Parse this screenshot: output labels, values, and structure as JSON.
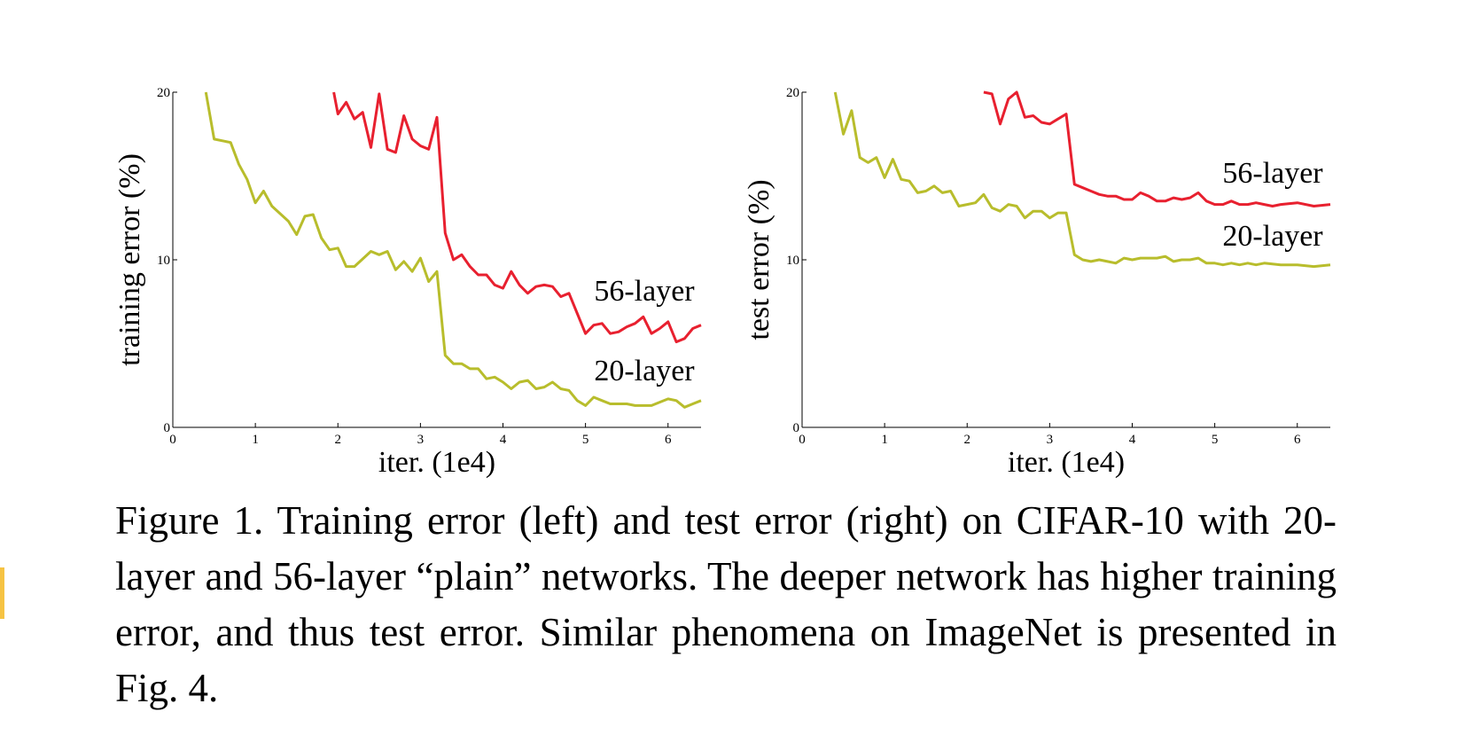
{
  "chart_data": [
    {
      "type": "line",
      "ylabel": "training error (%)",
      "xlabel": "iter. (1e4)",
      "xlim": [
        0,
        6.4
      ],
      "ylim": [
        0,
        20
      ],
      "xticks": [
        0,
        1,
        2,
        3,
        4,
        5,
        6
      ],
      "yticks": [
        0,
        10,
        20
      ],
      "series": [
        {
          "name": "56-layer",
          "color": "#e8202f",
          "x": [
            1.95,
            2.0,
            2.1,
            2.2,
            2.3,
            2.4,
            2.5,
            2.6,
            2.7,
            2.8,
            2.9,
            3.0,
            3.1,
            3.2,
            3.3,
            3.4,
            3.5,
            3.6,
            3.7,
            3.8,
            3.9,
            4.0,
            4.1,
            4.2,
            4.3,
            4.4,
            4.5,
            4.6,
            4.7,
            4.8,
            4.9,
            5.0,
            5.1,
            5.2,
            5.3,
            5.4,
            5.5,
            5.6,
            5.7,
            5.8,
            5.9,
            6.0,
            6.1,
            6.2,
            6.3,
            6.4
          ],
          "values": [
            20,
            18.7,
            19.4,
            18.4,
            18.8,
            16.7,
            19.9,
            16.6,
            16.4,
            18.6,
            17.2,
            16.8,
            16.6,
            18.5,
            11.6,
            10.0,
            10.3,
            9.6,
            9.1,
            9.1,
            8.5,
            8.3,
            9.3,
            8.5,
            8.0,
            8.4,
            8.5,
            8.4,
            7.8,
            8.0,
            6.8,
            5.6,
            6.1,
            6.2,
            5.6,
            5.7,
            6.0,
            6.2,
            6.6,
            5.6,
            5.9,
            6.3,
            5.1,
            5.3,
            5.9,
            6.1
          ]
        },
        {
          "name": "20-layer",
          "color": "#b8bd2c",
          "x": [
            0.4,
            0.5,
            0.7,
            0.8,
            0.9,
            1.0,
            1.1,
            1.2,
            1.4,
            1.5,
            1.6,
            1.7,
            1.8,
            1.9,
            2.0,
            2.1,
            2.2,
            2.4,
            2.5,
            2.6,
            2.7,
            2.8,
            2.9,
            3.0,
            3.1,
            3.2,
            3.3,
            3.4,
            3.5,
            3.6,
            3.7,
            3.8,
            3.9,
            4.0,
            4.1,
            4.2,
            4.3,
            4.4,
            4.5,
            4.6,
            4.7,
            4.8,
            4.9,
            5.0,
            5.1,
            5.2,
            5.3,
            5.5,
            5.6,
            5.8,
            5.9,
            6.0,
            6.1,
            6.2,
            6.3,
            6.4
          ],
          "values": [
            20,
            17.2,
            17.0,
            15.7,
            14.8,
            13.4,
            14.1,
            13.2,
            12.3,
            11.5,
            12.6,
            12.7,
            11.3,
            10.6,
            10.7,
            9.6,
            9.6,
            10.5,
            10.3,
            10.5,
            9.4,
            9.9,
            9.3,
            10.1,
            8.7,
            9.3,
            4.3,
            3.8,
            3.8,
            3.5,
            3.5,
            2.9,
            3.0,
            2.7,
            2.3,
            2.7,
            2.8,
            2.3,
            2.4,
            2.7,
            2.3,
            2.2,
            1.6,
            1.3,
            1.8,
            1.6,
            1.4,
            1.4,
            1.3,
            1.3,
            1.5,
            1.7,
            1.6,
            1.2,
            1.4,
            1.6
          ]
        }
      ]
    },
    {
      "type": "line",
      "ylabel": "test error (%)",
      "xlabel": "iter. (1e4)",
      "xlim": [
        0,
        6.4
      ],
      "ylim": [
        0,
        20
      ],
      "xticks": [
        0,
        1,
        2,
        3,
        4,
        5,
        6
      ],
      "yticks": [
        0,
        10,
        20
      ],
      "series": [
        {
          "name": "56-layer",
          "color": "#e8202f",
          "x": [
            2.2,
            2.3,
            2.4,
            2.5,
            2.6,
            2.7,
            2.8,
            2.9,
            3.0,
            3.1,
            3.2,
            3.3,
            3.4,
            3.5,
            3.6,
            3.7,
            3.8,
            3.9,
            4.0,
            4.1,
            4.2,
            4.3,
            4.4,
            4.5,
            4.6,
            4.7,
            4.8,
            4.9,
            5.0,
            5.1,
            5.2,
            5.3,
            5.4,
            5.5,
            5.6,
            5.7,
            5.8,
            6.0,
            6.2,
            6.4
          ],
          "values": [
            20,
            19.9,
            18.1,
            19.6,
            20.0,
            18.5,
            18.6,
            18.2,
            18.1,
            18.4,
            18.7,
            14.5,
            14.3,
            14.1,
            13.9,
            13.8,
            13.8,
            13.6,
            13.6,
            14.0,
            13.8,
            13.5,
            13.5,
            13.7,
            13.6,
            13.7,
            14.0,
            13.5,
            13.3,
            13.3,
            13.5,
            13.3,
            13.3,
            13.4,
            13.3,
            13.2,
            13.3,
            13.4,
            13.2,
            13.3
          ]
        },
        {
          "name": "20-layer",
          "color": "#b8bd2c",
          "x": [
            0.4,
            0.5,
            0.6,
            0.7,
            0.8,
            0.9,
            1.0,
            1.1,
            1.2,
            1.3,
            1.4,
            1.5,
            1.6,
            1.7,
            1.8,
            1.9,
            2.0,
            2.1,
            2.2,
            2.3,
            2.4,
            2.5,
            2.6,
            2.7,
            2.8,
            2.9,
            3.0,
            3.1,
            3.2,
            3.3,
            3.4,
            3.5,
            3.6,
            3.7,
            3.8,
            3.9,
            4.0,
            4.1,
            4.2,
            4.3,
            4.4,
            4.5,
            4.6,
            4.7,
            4.8,
            4.9,
            5.0,
            5.1,
            5.2,
            5.3,
            5.4,
            5.5,
            5.6,
            5.8,
            6.0,
            6.2,
            6.4
          ],
          "values": [
            20,
            17.5,
            18.9,
            16.1,
            15.8,
            16.1,
            14.9,
            16.0,
            14.8,
            14.7,
            14.0,
            14.1,
            14.4,
            14.0,
            14.1,
            13.2,
            13.3,
            13.4,
            13.9,
            13.1,
            12.9,
            13.3,
            13.2,
            12.5,
            12.9,
            12.9,
            12.5,
            12.8,
            12.8,
            10.3,
            10.0,
            9.9,
            10.0,
            9.9,
            9.8,
            10.1,
            10.0,
            10.1,
            10.1,
            10.1,
            10.2,
            9.9,
            10.0,
            10.0,
            10.1,
            9.8,
            9.8,
            9.7,
            9.8,
            9.7,
            9.8,
            9.7,
            9.8,
            9.7,
            9.7,
            9.6,
            9.7
          ]
        }
      ]
    }
  ],
  "caption": "Figure 1. Training error (left) and test error (right) on CIFAR-10 with 20-layer and 56-layer “plain” networks. The deeper network has higher training error, and thus test error.  Similar phenomena on ImageNet is presented in Fig. 4."
}
